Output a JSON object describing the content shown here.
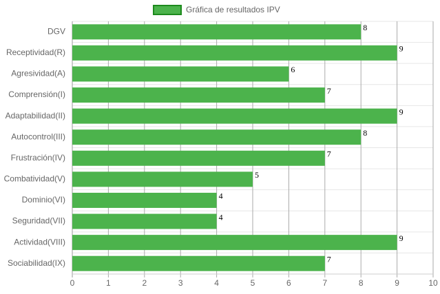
{
  "chart_data": {
    "type": "bar",
    "orientation": "horizontal",
    "categories": [
      "DGV",
      "Receptividad(R)",
      "Agresividad(A)",
      "Comprensión(I)",
      "Adaptabilidad(II)",
      "Autocontrol(III)",
      "Frustración(IV)",
      "Combatividad(V)",
      "Dominio(VI)",
      "Seguridad(VII)",
      "Actividad(VIII)",
      "Sociabilidad(IX)"
    ],
    "series": [
      {
        "name": "Gráfica de resultados IPV",
        "color": "#4cb34c",
        "values": [
          8,
          9,
          6,
          7,
          9,
          8,
          7,
          5,
          4,
          4,
          9,
          7
        ]
      }
    ],
    "xlim": [
      0,
      10
    ],
    "xticks": [
      0,
      1,
      2,
      3,
      4,
      5,
      6,
      7,
      8,
      9,
      10
    ],
    "grid": true,
    "legend": "top"
  }
}
